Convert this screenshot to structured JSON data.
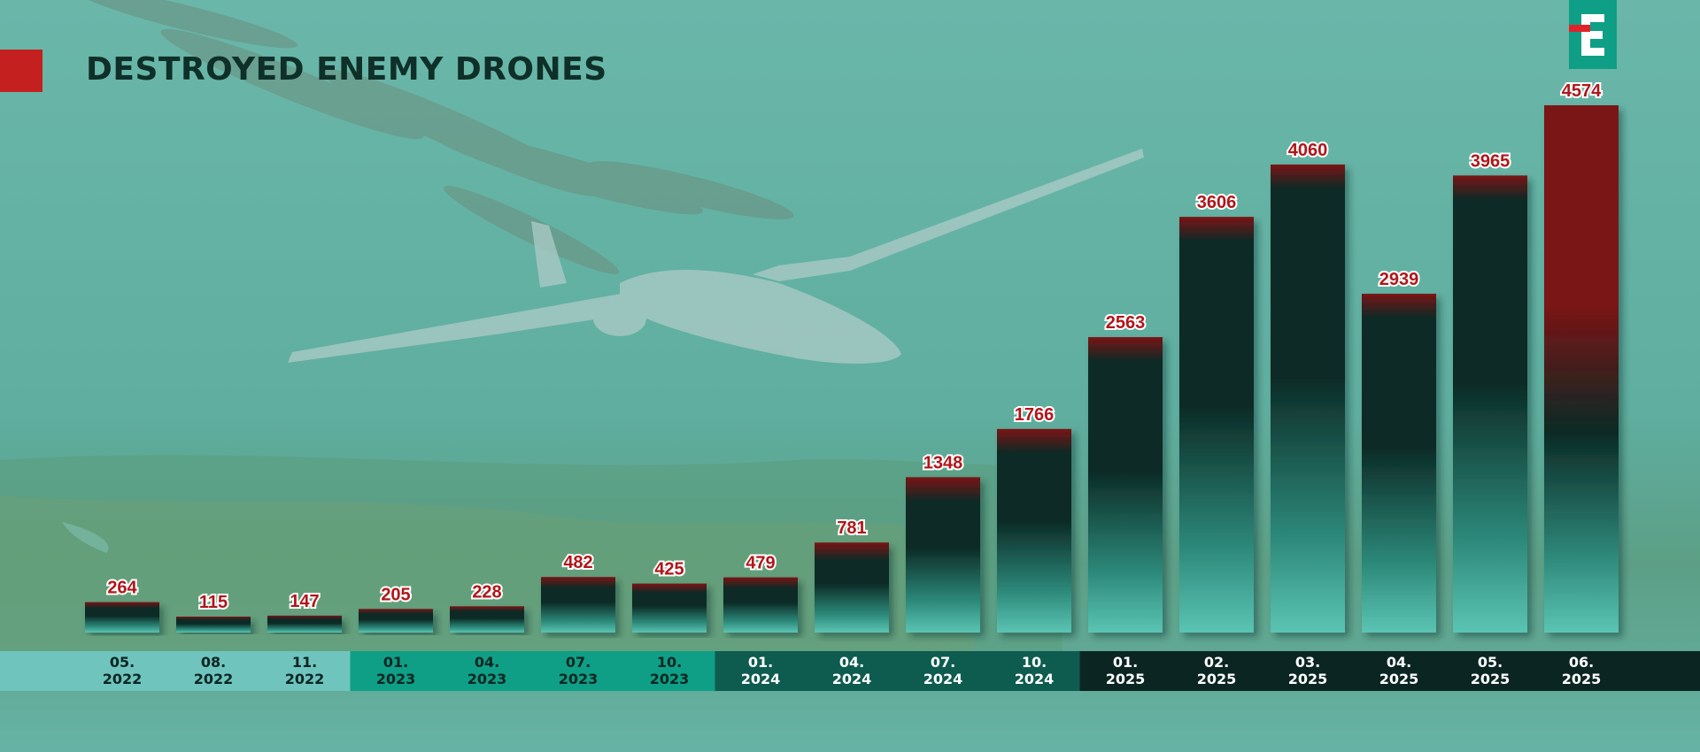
{
  "header": {
    "title": "DESTROYED ENEMY DRONES"
  },
  "logo": {
    "letter": "E",
    "accent_color": "#e0232a",
    "background_color": "#0e9f86"
  },
  "colors": {
    "background": "#65b4a7",
    "bar_top": "#7a1416",
    "bar_dark": "#0b2a25",
    "bar_bottom": "#5bc4b3",
    "value_label": "#b0161a",
    "band_2022": "#6fc4be",
    "band_2023": "#0e9f86",
    "band_2024": "#0d5c4f",
    "band_2025": "#0b2622"
  },
  "chart_data": {
    "type": "bar",
    "title": "DESTROYED ENEMY DRONES",
    "xlabel": "",
    "ylabel": "",
    "categories": [
      "05.\n2022",
      "08.\n2022",
      "11.\n2022",
      "01.\n2023",
      "04.\n2023",
      "07.\n2023",
      "10.\n2023",
      "01.\n2024",
      "04.\n2024",
      "07.\n2024",
      "10.\n2024",
      "01.\n2025",
      "02.\n2025",
      "03.\n2025",
      "04.\n2025",
      "05.\n2025",
      "06.\n2025"
    ],
    "values": [
      264,
      115,
      147,
      205,
      228,
      482,
      425,
      479,
      781,
      1348,
      1766,
      2563,
      3606,
      4060,
      2939,
      3965,
      4574
    ],
    "ylim": [
      0,
      4574
    ],
    "grid": false,
    "legend": "none",
    "year_bands": [
      {
        "year": "2022",
        "count": 3,
        "color": "#6fc4be",
        "text_color": "#0b2622"
      },
      {
        "year": "2023",
        "count": 4,
        "color": "#0e9f86",
        "text_color": "#0b2622"
      },
      {
        "year": "2024",
        "count": 4,
        "color": "#0d5c4f",
        "text_color": "#ffffff"
      },
      {
        "year": "2025",
        "count": 6,
        "color": "#0b2622",
        "text_color": "#ffffff"
      }
    ]
  }
}
